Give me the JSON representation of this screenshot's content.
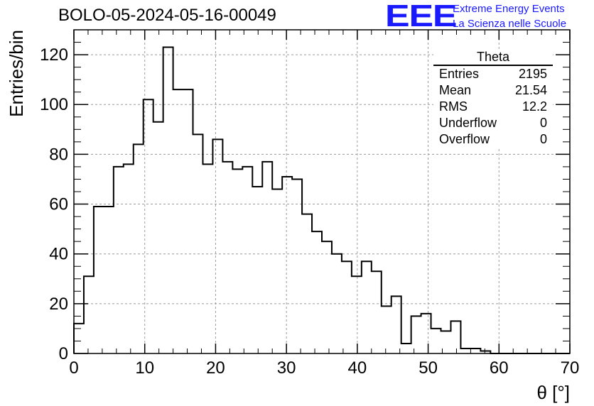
{
  "title": "BOLO-05-2024-05-16-00049",
  "logo": {
    "mark": "EEE",
    "line1": "Extreme Energy Events",
    "line2": "La Scienza nelle Scuole",
    "color": "#1a1aff"
  },
  "stats_box": {
    "title": "Theta",
    "rows": [
      {
        "label": "Entries",
        "value": "2195"
      },
      {
        "label": "Mean",
        "value": "21.54"
      },
      {
        "label": "RMS",
        "value": "12.2"
      },
      {
        "label": "Underflow",
        "value": "0"
      },
      {
        "label": "Overflow",
        "value": "0"
      }
    ]
  },
  "chart_data": {
    "type": "histogram",
    "title": "BOLO-05-2024-05-16-00049",
    "xlabel": "θ [°]",
    "ylabel": "Entries/bin",
    "xlim": [
      0,
      70
    ],
    "ylim": [
      0,
      130
    ],
    "bin_width": 1.4,
    "bin_start": 0,
    "values": [
      12,
      31,
      59,
      59,
      75,
      76,
      84,
      102,
      93,
      123,
      106,
      106,
      88,
      76,
      86,
      77,
      74,
      75,
      67,
      77,
      66,
      71,
      70,
      56,
      49,
      45,
      40,
      37,
      31,
      37,
      33,
      19,
      23,
      4,
      15,
      16,
      10,
      9,
      13,
      2,
      2,
      1,
      0,
      0,
      0,
      0,
      0,
      0,
      0,
      0
    ],
    "x_ticks": [
      0,
      10,
      20,
      30,
      40,
      50,
      60,
      70
    ],
    "y_ticks": [
      0,
      20,
      40,
      60,
      80,
      100,
      120
    ],
    "grid": true,
    "line_color": "#000000"
  }
}
